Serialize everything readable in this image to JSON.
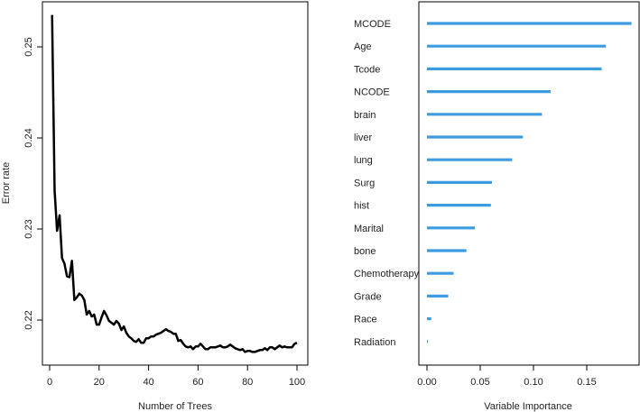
{
  "chart_data": [
    {
      "type": "line",
      "title": "",
      "xlabel": "Number of Trees",
      "ylabel": "Error rate",
      "xlim": [
        0,
        100
      ],
      "ylim": [
        0.2155,
        0.2545
      ],
      "x_ticks": [
        0,
        20,
        40,
        60,
        80,
        100
      ],
      "y_ticks": [
        0.22,
        0.23,
        0.24,
        0.25
      ],
      "grid": false,
      "color": "#000000",
      "x": [
        1,
        2,
        3,
        4,
        5,
        6,
        7,
        8,
        9,
        10,
        11,
        12,
        13,
        14,
        15,
        16,
        17,
        18,
        19,
        20,
        21,
        22,
        23,
        24,
        25,
        26,
        27,
        28,
        29,
        30,
        31,
        32,
        33,
        34,
        35,
        36,
        37,
        38,
        39,
        40,
        41,
        42,
        43,
        44,
        45,
        46,
        47,
        48,
        49,
        50,
        51,
        52,
        53,
        54,
        55,
        56,
        57,
        58,
        59,
        60,
        61,
        62,
        63,
        64,
        65,
        66,
        67,
        68,
        69,
        70,
        71,
        72,
        73,
        74,
        75,
        76,
        77,
        78,
        79,
        80,
        81,
        82,
        83,
        84,
        85,
        86,
        87,
        88,
        89,
        90,
        91,
        92,
        93,
        94,
        95,
        96,
        97,
        98,
        99,
        100
      ],
      "y": [
        0.2535,
        0.2342,
        0.2298,
        0.2315,
        0.2268,
        0.2262,
        0.2248,
        0.2247,
        0.2265,
        0.2222,
        0.2225,
        0.2229,
        0.2227,
        0.2222,
        0.2206,
        0.221,
        0.2204,
        0.2206,
        0.2195,
        0.2195,
        0.2203,
        0.221,
        0.2205,
        0.2199,
        0.2197,
        0.2195,
        0.2199,
        0.2196,
        0.2189,
        0.2193,
        0.2186,
        0.2182,
        0.218,
        0.2177,
        0.2176,
        0.2179,
        0.2175,
        0.2175,
        0.218,
        0.218,
        0.2182,
        0.2182,
        0.2184,
        0.2185,
        0.2186,
        0.2188,
        0.219,
        0.2188,
        0.2187,
        0.2185,
        0.2185,
        0.2177,
        0.2178,
        0.2174,
        0.2171,
        0.217,
        0.2171,
        0.2168,
        0.2171,
        0.2171,
        0.2174,
        0.2171,
        0.2168,
        0.2168,
        0.217,
        0.217,
        0.217,
        0.2171,
        0.2172,
        0.217,
        0.217,
        0.2171,
        0.2173,
        0.2171,
        0.2169,
        0.2168,
        0.2167,
        0.2168,
        0.2165,
        0.2166,
        0.2166,
        0.2165,
        0.2165,
        0.2166,
        0.2167,
        0.2167,
        0.2169,
        0.2167,
        0.217,
        0.217,
        0.2168,
        0.217,
        0.2172,
        0.217,
        0.2171,
        0.217,
        0.217,
        0.217,
        0.2174,
        0.2175
      ]
    },
    {
      "type": "bar",
      "orientation": "horizontal",
      "title": "",
      "xlabel": "Variable Importance",
      "ylabel": "",
      "xlim": [
        -0.005,
        0.196
      ],
      "x_ticks": [
        "0.00",
        "0.05",
        "0.10",
        "0.15"
      ],
      "x_tick_values": [
        0,
        0.05,
        0.1,
        0.15
      ],
      "grid": false,
      "color": "#3d9be0",
      "categories": [
        "MCODE",
        "Age",
        "Tcode",
        "NCODE",
        "brain",
        "liver",
        "lung",
        "Surg",
        "hist",
        "Marital",
        "bone",
        "Chemotherapy",
        "Grade",
        "Race",
        "Radiation"
      ],
      "values": [
        0.192,
        0.168,
        0.164,
        0.116,
        0.108,
        0.09,
        0.08,
        0.061,
        0.06,
        0.045,
        0.037,
        0.025,
        0.02,
        0.004,
        0.001
      ]
    }
  ]
}
